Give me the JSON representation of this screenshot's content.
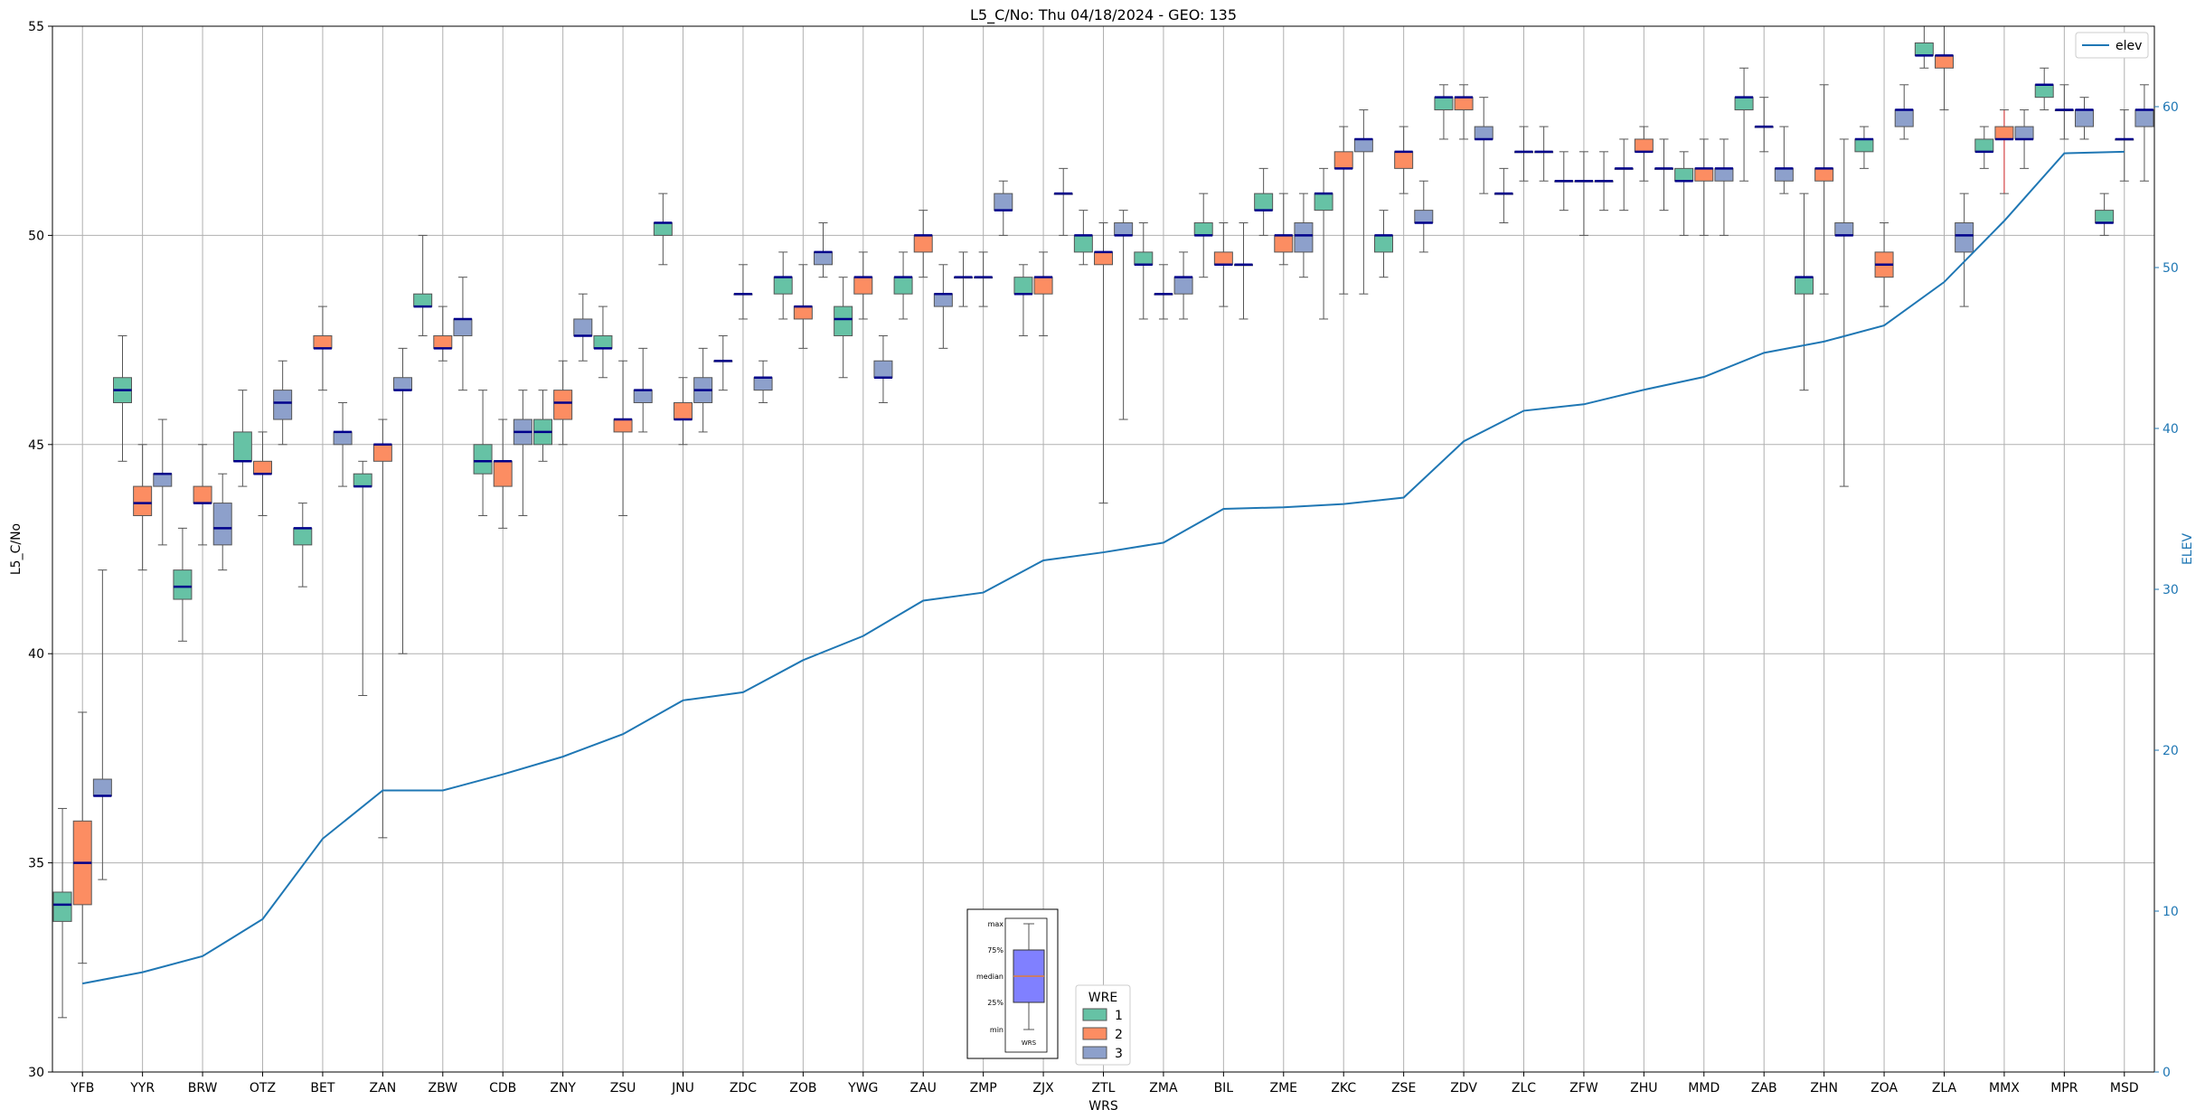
{
  "chart_data": {
    "type": "box",
    "title": "L5_C/No: Thu 04/18/2024 - GEO: 135",
    "xlabel": "WRS",
    "ylabel": "L5_C/No",
    "y2label": "ELEV",
    "ylim": [
      30,
      55
    ],
    "y2lim": [
      0,
      65
    ],
    "yticks": [
      30,
      35,
      40,
      45,
      50,
      55
    ],
    "y2ticks": [
      0,
      10,
      20,
      30,
      40,
      50,
      60
    ],
    "grid": true,
    "categories": [
      "YFB",
      "YYR",
      "BRW",
      "OTZ",
      "BET",
      "ZAN",
      "ZBW",
      "CDB",
      "ZNY",
      "ZSU",
      "JNU",
      "ZDC",
      "ZOB",
      "YWG",
      "ZAU",
      "ZMP",
      "ZJX",
      "ZTL",
      "ZMA",
      "BIL",
      "ZME",
      "ZKC",
      "ZSE",
      "ZDV",
      "ZLC",
      "ZFW",
      "ZHU",
      "MMD",
      "ZAB",
      "ZHN",
      "ZOA",
      "ZLA",
      "MMX",
      "MPR",
      "MSD"
    ],
    "colors": {
      "1": "#66c2a5",
      "2": "#fc8d62",
      "3": "#8da0cb",
      "median": "#00008b",
      "elev_line": "#1f77b4",
      "whisker": "#555555",
      "flier_whisker": "#d62728"
    },
    "series": [
      {
        "name": "1",
        "boxes": [
          {
            "i": 0,
            "min": 31.3,
            "q1": 33.6,
            "med": 34.0,
            "q3": 34.3,
            "max": 36.3
          },
          {
            "i": 1,
            "min": 44.6,
            "q1": 46.0,
            "med": 46.3,
            "q3": 46.6,
            "max": 47.6
          },
          {
            "i": 2,
            "min": 40.3,
            "q1": 41.3,
            "med": 41.6,
            "q3": 42.0,
            "max": 43.0
          },
          {
            "i": 3,
            "min": 44.0,
            "q1": 44.6,
            "med": 44.6,
            "q3": 45.3,
            "max": 46.3
          },
          {
            "i": 4,
            "min": 41.6,
            "q1": 42.6,
            "med": 43.0,
            "q3": 43.0,
            "max": 43.6
          },
          {
            "i": 5,
            "min": 39.0,
            "q1": 44.0,
            "med": 44.0,
            "q3": 44.3,
            "max": 44.6
          },
          {
            "i": 6,
            "min": 47.6,
            "q1": 48.3,
            "med": 48.3,
            "q3": 48.6,
            "max": 50.0
          },
          {
            "i": 7,
            "min": 43.3,
            "q1": 44.3,
            "med": 44.6,
            "q3": 45.0,
            "max": 46.3
          },
          {
            "i": 8,
            "min": 44.6,
            "q1": 45.0,
            "med": 45.3,
            "q3": 45.6,
            "max": 46.3
          },
          {
            "i": 9,
            "min": 46.6,
            "q1": 47.3,
            "med": 47.3,
            "q3": 47.6,
            "max": 48.3
          },
          {
            "i": 10,
            "min": 49.3,
            "q1": 50.0,
            "med": 50.3,
            "q3": 50.3,
            "max": 51.0
          },
          {
            "i": 11,
            "min": 46.3,
            "q1": 47.0,
            "med": 47.0,
            "q3": 47.0,
            "max": 47.6
          },
          {
            "i": 12,
            "min": 48.0,
            "q1": 48.6,
            "med": 49.0,
            "q3": 49.0,
            "max": 49.6
          },
          {
            "i": 13,
            "min": 46.6,
            "q1": 47.6,
            "med": 48.0,
            "q3": 48.3,
            "max": 49.0
          },
          {
            "i": 14,
            "min": 48.0,
            "q1": 48.6,
            "med": 49.0,
            "q3": 49.0,
            "max": 49.6
          },
          {
            "i": 15,
            "min": 48.3,
            "q1": 49.0,
            "med": 49.0,
            "q3": 49.0,
            "max": 49.6
          },
          {
            "i": 16,
            "min": 47.6,
            "q1": 48.6,
            "med": 48.6,
            "q3": 49.0,
            "max": 49.3
          },
          {
            "i": 17,
            "min": 49.3,
            "q1": 49.6,
            "med": 50.0,
            "q3": 50.0,
            "max": 50.6
          },
          {
            "i": 18,
            "min": 48.0,
            "q1": 49.3,
            "med": 49.3,
            "q3": 49.6,
            "max": 50.3
          },
          {
            "i": 19,
            "min": 49.0,
            "q1": 50.0,
            "med": 50.0,
            "q3": 50.3,
            "max": 51.0
          },
          {
            "i": 20,
            "min": 50.0,
            "q1": 50.6,
            "med": 50.6,
            "q3": 51.0,
            "max": 51.6
          },
          {
            "i": 21,
            "min": 48.0,
            "q1": 50.6,
            "med": 51.0,
            "q3": 51.0,
            "max": 51.6
          },
          {
            "i": 22,
            "min": 49.0,
            "q1": 49.6,
            "med": 50.0,
            "q3": 50.0,
            "max": 50.6
          },
          {
            "i": 23,
            "min": 52.3,
            "q1": 53.0,
            "med": 53.3,
            "q3": 53.3,
            "max": 53.6
          },
          {
            "i": 24,
            "min": 50.3,
            "q1": 51.0,
            "med": 51.0,
            "q3": 51.0,
            "max": 51.6
          },
          {
            "i": 25,
            "min": 50.6,
            "q1": 51.3,
            "med": 51.3,
            "q3": 51.3,
            "max": 52.0
          },
          {
            "i": 26,
            "min": 50.6,
            "q1": 51.6,
            "med": 51.6,
            "q3": 51.6,
            "max": 52.3
          },
          {
            "i": 27,
            "min": 50.0,
            "q1": 51.3,
            "med": 51.3,
            "q3": 51.6,
            "max": 52.0
          },
          {
            "i": 28,
            "min": 51.3,
            "q1": 53.0,
            "med": 53.3,
            "q3": 53.3,
            "max": 54.0
          },
          {
            "i": 29,
            "min": 46.3,
            "q1": 48.6,
            "med": 49.0,
            "q3": 49.0,
            "max": 51.0
          },
          {
            "i": 30,
            "min": 51.6,
            "q1": 52.0,
            "med": 52.3,
            "q3": 52.3,
            "max": 52.6
          },
          {
            "i": 31,
            "min": 54.0,
            "q1": 54.3,
            "med": 54.3,
            "q3": 54.6,
            "max": 55.0
          },
          {
            "i": 32,
            "min": 51.6,
            "q1": 52.0,
            "med": 52.0,
            "q3": 52.3,
            "max": 52.6
          },
          {
            "i": 33,
            "min": 53.0,
            "q1": 53.3,
            "med": 53.6,
            "q3": 53.6,
            "max": 54.0
          },
          {
            "i": 34,
            "min": 50.0,
            "q1": 50.3,
            "med": 50.3,
            "q3": 50.6,
            "max": 51.0
          }
        ]
      },
      {
        "name": "2",
        "boxes": [
          {
            "i": 0,
            "min": 32.6,
            "q1": 34.0,
            "med": 35.0,
            "q3": 36.0,
            "max": 38.6
          },
          {
            "i": 1,
            "min": 42.0,
            "q1": 43.3,
            "med": 43.6,
            "q3": 44.0,
            "max": 45.0
          },
          {
            "i": 2,
            "min": 42.6,
            "q1": 43.6,
            "med": 43.6,
            "q3": 44.0,
            "max": 45.0
          },
          {
            "i": 3,
            "min": 43.3,
            "q1": 44.3,
            "med": 44.3,
            "q3": 44.6,
            "max": 45.3
          },
          {
            "i": 4,
            "min": 46.3,
            "q1": 47.3,
            "med": 47.3,
            "q3": 47.6,
            "max": 48.3
          },
          {
            "i": 5,
            "min": 35.6,
            "q1": 44.6,
            "med": 45.0,
            "q3": 45.0,
            "max": 45.6
          },
          {
            "i": 6,
            "min": 47.0,
            "q1": 47.3,
            "med": 47.3,
            "q3": 47.6,
            "max": 48.3
          },
          {
            "i": 7,
            "min": 43.0,
            "q1": 44.0,
            "med": 44.6,
            "q3": 44.6,
            "max": 45.6
          },
          {
            "i": 8,
            "min": 45.0,
            "q1": 45.6,
            "med": 46.0,
            "q3": 46.3,
            "max": 47.0
          },
          {
            "i": 9,
            "min": 43.3,
            "q1": 45.3,
            "med": 45.6,
            "q3": 45.6,
            "max": 47.0
          },
          {
            "i": 10,
            "min": 45.0,
            "q1": 45.6,
            "med": 45.6,
            "q3": 46.0,
            "max": 46.6
          },
          {
            "i": 11,
            "min": 48.0,
            "q1": 48.6,
            "med": 48.6,
            "q3": 48.6,
            "max": 49.3
          },
          {
            "i": 12,
            "min": 47.3,
            "q1": 48.0,
            "med": 48.3,
            "q3": 48.3,
            "max": 49.3
          },
          {
            "i": 13,
            "min": 48.0,
            "q1": 48.6,
            "med": 49.0,
            "q3": 49.0,
            "max": 49.6
          },
          {
            "i": 14,
            "min": 49.0,
            "q1": 49.6,
            "med": 50.0,
            "q3": 50.0,
            "max": 50.6
          },
          {
            "i": 15,
            "min": 48.3,
            "q1": 49.0,
            "med": 49.0,
            "q3": 49.0,
            "max": 49.6
          },
          {
            "i": 16,
            "min": 47.6,
            "q1": 48.6,
            "med": 49.0,
            "q3": 49.0,
            "max": 49.6
          },
          {
            "i": 17,
            "min": 43.6,
            "q1": 49.3,
            "med": 49.6,
            "q3": 49.6,
            "max": 50.3
          },
          {
            "i": 18,
            "min": 48.0,
            "q1": 48.6,
            "med": 48.6,
            "q3": 48.6,
            "max": 49.3
          },
          {
            "i": 19,
            "min": 48.3,
            "q1": 49.3,
            "med": 49.3,
            "q3": 49.6,
            "max": 50.3
          },
          {
            "i": 20,
            "min": 49.3,
            "q1": 49.6,
            "med": 50.0,
            "q3": 50.0,
            "max": 51.0
          },
          {
            "i": 21,
            "min": 48.6,
            "q1": 51.6,
            "med": 51.6,
            "q3": 52.0,
            "max": 52.6
          },
          {
            "i": 22,
            "min": 51.0,
            "q1": 51.6,
            "med": 52.0,
            "q3": 52.0,
            "max": 52.6
          },
          {
            "i": 23,
            "min": 52.3,
            "q1": 53.0,
            "med": 53.3,
            "q3": 53.3,
            "max": 53.6
          },
          {
            "i": 24,
            "min": 51.3,
            "q1": 52.0,
            "med": 52.0,
            "q3": 52.0,
            "max": 52.6
          },
          {
            "i": 25,
            "min": 50.0,
            "q1": 51.3,
            "med": 51.3,
            "q3": 51.3,
            "max": 52.0
          },
          {
            "i": 26,
            "min": 51.3,
            "q1": 52.0,
            "med": 52.0,
            "q3": 52.3,
            "max": 52.6
          },
          {
            "i": 27,
            "min": 50.0,
            "q1": 51.3,
            "med": 51.6,
            "q3": 51.6,
            "max": 52.3
          },
          {
            "i": 28,
            "min": 52.0,
            "q1": 52.6,
            "med": 52.6,
            "q3": 52.6,
            "max": 53.3
          },
          {
            "i": 29,
            "min": 48.6,
            "q1": 51.3,
            "med": 51.6,
            "q3": 51.6,
            "max": 53.6
          },
          {
            "i": 30,
            "min": 48.3,
            "q1": 49.0,
            "med": 49.3,
            "q3": 49.6,
            "max": 50.3
          },
          {
            "i": 31,
            "min": 53.0,
            "q1": 54.0,
            "med": 54.3,
            "q3": 54.3,
            "max": 55.0
          },
          {
            "i": 32,
            "min": 51.0,
            "q1": 52.3,
            "med": 52.3,
            "q3": 52.6,
            "max": 53.0,
            "whisker_color": "flier"
          },
          {
            "i": 33,
            "min": 52.3,
            "q1": 53.0,
            "med": 53.0,
            "q3": 53.0,
            "max": 53.6
          },
          {
            "i": 34,
            "min": 51.3,
            "q1": 52.3,
            "med": 52.3,
            "q3": 52.3,
            "max": 53.0
          }
        ]
      },
      {
        "name": "3",
        "boxes": [
          {
            "i": 0,
            "min": 34.6,
            "q1": 36.6,
            "med": 36.6,
            "q3": 37.0,
            "max": 42.0
          },
          {
            "i": 1,
            "min": 42.6,
            "q1": 44.0,
            "med": 44.3,
            "q3": 44.3,
            "max": 45.6
          },
          {
            "i": 2,
            "min": 42.0,
            "q1": 42.6,
            "med": 43.0,
            "q3": 43.6,
            "max": 44.3
          },
          {
            "i": 3,
            "min": 45.0,
            "q1": 45.6,
            "med": 46.0,
            "q3": 46.3,
            "max": 47.0
          },
          {
            "i": 4,
            "min": 44.0,
            "q1": 45.0,
            "med": 45.3,
            "q3": 45.3,
            "max": 46.0
          },
          {
            "i": 5,
            "min": 40.0,
            "q1": 46.3,
            "med": 46.3,
            "q3": 46.6,
            "max": 47.3
          },
          {
            "i": 6,
            "min": 46.3,
            "q1": 47.6,
            "med": 48.0,
            "q3": 48.0,
            "max": 49.0
          },
          {
            "i": 7,
            "min": 43.3,
            "q1": 45.0,
            "med": 45.3,
            "q3": 45.6,
            "max": 46.3
          },
          {
            "i": 8,
            "min": 47.0,
            "q1": 47.6,
            "med": 47.6,
            "q3": 48.0,
            "max": 48.6
          },
          {
            "i": 9,
            "min": 45.3,
            "q1": 46.0,
            "med": 46.3,
            "q3": 46.3,
            "max": 47.3
          },
          {
            "i": 10,
            "min": 45.3,
            "q1": 46.0,
            "med": 46.3,
            "q3": 46.6,
            "max": 47.3
          },
          {
            "i": 11,
            "min": 46.0,
            "q1": 46.3,
            "med": 46.6,
            "q3": 46.6,
            "max": 47.0
          },
          {
            "i": 12,
            "min": 49.0,
            "q1": 49.3,
            "med": 49.6,
            "q3": 49.6,
            "max": 50.3
          },
          {
            "i": 13,
            "min": 46.0,
            "q1": 46.6,
            "med": 46.6,
            "q3": 47.0,
            "max": 47.6
          },
          {
            "i": 14,
            "min": 47.3,
            "q1": 48.3,
            "med": 48.6,
            "q3": 48.6,
            "max": 49.3
          },
          {
            "i": 15,
            "min": 50.0,
            "q1": 50.6,
            "med": 50.6,
            "q3": 51.0,
            "max": 51.3
          },
          {
            "i": 16,
            "min": 50.0,
            "q1": 51.0,
            "med": 51.0,
            "q3": 51.0,
            "max": 51.6
          },
          {
            "i": 17,
            "min": 45.6,
            "q1": 50.0,
            "med": 50.0,
            "q3": 50.3,
            "max": 50.6
          },
          {
            "i": 18,
            "min": 48.0,
            "q1": 48.6,
            "med": 49.0,
            "q3": 49.0,
            "max": 49.6
          },
          {
            "i": 19,
            "min": 48.0,
            "q1": 49.3,
            "med": 49.3,
            "q3": 49.3,
            "max": 50.3
          },
          {
            "i": 20,
            "min": 49.0,
            "q1": 49.6,
            "med": 50.0,
            "q3": 50.3,
            "max": 51.0
          },
          {
            "i": 21,
            "min": 48.6,
            "q1": 52.0,
            "med": 52.3,
            "q3": 52.3,
            "max": 53.0
          },
          {
            "i": 22,
            "min": 49.6,
            "q1": 50.3,
            "med": 50.3,
            "q3": 50.6,
            "max": 51.3
          },
          {
            "i": 23,
            "min": 51.0,
            "q1": 52.3,
            "med": 52.3,
            "q3": 52.6,
            "max": 53.3
          },
          {
            "i": 24,
            "min": 51.3,
            "q1": 52.0,
            "med": 52.0,
            "q3": 52.0,
            "max": 52.6
          },
          {
            "i": 25,
            "min": 50.6,
            "q1": 51.3,
            "med": 51.3,
            "q3": 51.3,
            "max": 52.0
          },
          {
            "i": 26,
            "min": 50.6,
            "q1": 51.6,
            "med": 51.6,
            "q3": 51.6,
            "max": 52.3
          },
          {
            "i": 27,
            "min": 50.0,
            "q1": 51.3,
            "med": 51.6,
            "q3": 51.6,
            "max": 52.3
          },
          {
            "i": 28,
            "min": 51.0,
            "q1": 51.3,
            "med": 51.6,
            "q3": 51.6,
            "max": 52.6
          },
          {
            "i": 29,
            "min": 44.0,
            "q1": 50.0,
            "med": 50.0,
            "q3": 50.3,
            "max": 52.3
          },
          {
            "i": 30,
            "min": 52.3,
            "q1": 52.6,
            "med": 53.0,
            "q3": 53.0,
            "max": 53.6
          },
          {
            "i": 31,
            "min": 48.3,
            "q1": 49.6,
            "med": 50.0,
            "q3": 50.3,
            "max": 51.0
          },
          {
            "i": 32,
            "min": 51.6,
            "q1": 52.3,
            "med": 52.3,
            "q3": 52.6,
            "max": 53.0
          },
          {
            "i": 33,
            "min": 52.3,
            "q1": 52.6,
            "med": 53.0,
            "q3": 53.0,
            "max": 53.3
          },
          {
            "i": 34,
            "min": 51.3,
            "q1": 52.6,
            "med": 53.0,
            "q3": 53.0,
            "max": 53.6
          }
        ]
      }
    ],
    "elev": {
      "name": "elev",
      "values": [
        5.5,
        6.2,
        7.2,
        9.5,
        14.5,
        17.5,
        17.5,
        18.5,
        19.6,
        21.0,
        23.1,
        23.6,
        25.6,
        27.1,
        29.3,
        29.8,
        31.8,
        32.3,
        32.9,
        35.0,
        35.1,
        35.3,
        35.7,
        39.2,
        41.1,
        41.5,
        42.4,
        43.2,
        44.7,
        45.4,
        46.4,
        49.1,
        52.9,
        57.1,
        57.2
      ]
    },
    "legend_elev": {
      "placement": "top-right",
      "label": "elev"
    },
    "legend_wre": {
      "title": "WRE",
      "placement": "bottom-center",
      "items": [
        "1",
        "2",
        "3"
      ]
    },
    "box_key": {
      "placement": "bottom-center",
      "labels": [
        "max",
        "75%",
        "median",
        "25%",
        "min"
      ],
      "xlabel": "WRS",
      "fill": "#8080ff"
    }
  }
}
